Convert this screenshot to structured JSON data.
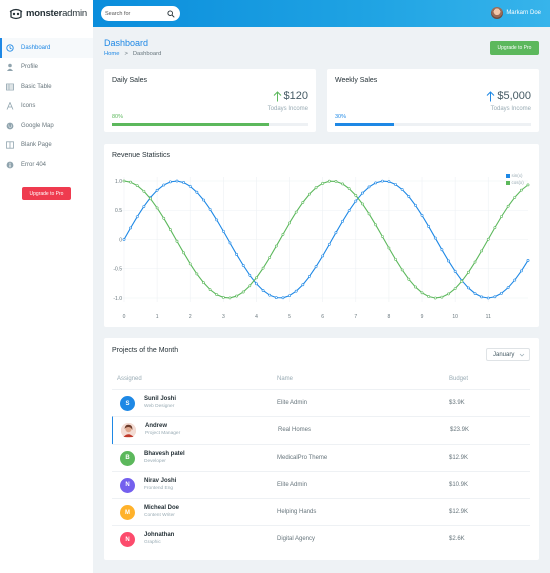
{
  "brand": {
    "part1": "monster",
    "part2": "admin"
  },
  "search": {
    "placeholder": "Search for"
  },
  "user": {
    "name": "Markarn Doe"
  },
  "sidebar": {
    "items": [
      {
        "label": "Dashboard",
        "icon": "clock-icon"
      },
      {
        "label": "Profile",
        "icon": "user-icon"
      },
      {
        "label": "Basic Table",
        "icon": "table-icon"
      },
      {
        "label": "Icons",
        "icon": "font-icon"
      },
      {
        "label": "Google Map",
        "icon": "globe-icon"
      },
      {
        "label": "Blank Page",
        "icon": "columns-icon"
      },
      {
        "label": "Error 404",
        "icon": "info-icon"
      }
    ],
    "upgrade_label": "Upgrade to Pro"
  },
  "page": {
    "title": "Dashboard",
    "breadcrumb": {
      "home": "Home",
      "separator": ">",
      "current": "Dashboard"
    },
    "upgrade_label": "Upgrade to Pro"
  },
  "daily_sales": {
    "title": "Daily Sales",
    "value": "$120",
    "label": "Todays Income",
    "percent_label": "80%",
    "progress": 0.8,
    "color": "#5cb85c"
  },
  "weekly_sales": {
    "title": "Weekly Sales",
    "value": "$5,000",
    "label": "Todays Income",
    "percent_label": "30%",
    "progress": 0.3,
    "color": "#1e88e5"
  },
  "revenue": {
    "title": "Revenue Statistics"
  },
  "chart_data": {
    "type": "line",
    "title": "Revenue Statistics",
    "x_ticks": [
      "0",
      "1",
      "2",
      "3",
      "4",
      "5",
      "6",
      "7",
      "8",
      "9",
      "10",
      "11"
    ],
    "y_ticks": [
      "1.0",
      "0.5",
      "0",
      "-0.5",
      "-1.0"
    ],
    "xlim": [
      0,
      12.2
    ],
    "ylim": [
      -1,
      1
    ],
    "step": 0.2,
    "legend_position": "top-right",
    "series": [
      {
        "name": "sin(x)",
        "function": "sin",
        "color": "#1e88e5"
      },
      {
        "name": "cos(x)",
        "function": "cos",
        "color": "#5cb85c"
      }
    ]
  },
  "projects": {
    "title": "Projects of the Month",
    "month": "January",
    "headers": {
      "assigned": "Assigned",
      "name": "Name",
      "budget": "Budget"
    },
    "rows": [
      {
        "initial": "S",
        "color": "#1e88e5",
        "name": "Sunil Joshi",
        "role": "Web Designer",
        "project": "Elite Admin",
        "budget": "$3.9K"
      },
      {
        "initial": "",
        "color": "#e8b4a4",
        "name": "Andrew",
        "role": "Project Manager",
        "project": "Real Homes",
        "budget": "$23.9K"
      },
      {
        "initial": "B",
        "color": "#5cb85c",
        "name": "Bhavesh patel",
        "role": "Developer",
        "project": "MedicalPro Theme",
        "budget": "$12.9K"
      },
      {
        "initial": "N",
        "color": "#7460ee",
        "name": "Nirav Joshi",
        "role": "Frontend Eng",
        "project": "Elite Admin",
        "budget": "$10.9K"
      },
      {
        "initial": "M",
        "color": "#ffb22b",
        "name": "Micheal Doe",
        "role": "Content Writer",
        "project": "Helping Hands",
        "budget": "$12.9K"
      },
      {
        "initial": "N",
        "color": "#fc4b6c",
        "name": "Johnathan",
        "role": "Graphic",
        "project": "Digital Agency",
        "budget": "$2.6K"
      }
    ]
  }
}
